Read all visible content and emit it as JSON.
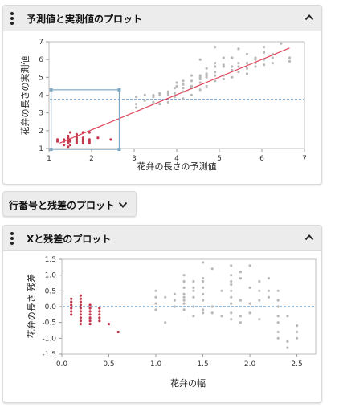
{
  "panel1": {
    "title": "予測値と実測値のプロット",
    "plot": {
      "x_label": "花弁の長さの予測値",
      "y_label": "花弁の長さの実測値",
      "x_ticks": [
        "1",
        "2",
        "3",
        "4",
        "5",
        "6",
        "7"
      ],
      "y_ticks": [
        "1",
        "2",
        "3",
        "4",
        "5",
        "6",
        "7"
      ]
    }
  },
  "panel2": {
    "title": "行番号と残差のプロット"
  },
  "panel3": {
    "title": "Xと残差のプロット",
    "plot": {
      "x_label": "花弁の幅",
      "y_label": "花弁の長さ 残差",
      "x_ticks": [
        "0.0",
        "0.5",
        "1.0",
        "1.5",
        "2.0",
        "2.5"
      ],
      "y_ticks": [
        "1.5",
        "1.0",
        "0.5",
        "0.0",
        "-0.5",
        "-1.0",
        "-1.5"
      ]
    }
  },
  "colors": {
    "selected": "#c2384e",
    "unselected": "#b9b9b9",
    "fit_line": "#e0445a",
    "mean_line": "#3a78b5",
    "brush": "#7fa9c2"
  },
  "chart_data": [
    {
      "type": "scatter",
      "title": "予測値と実測値のプロット",
      "xlabel": "花弁の長さの予測値",
      "ylabel": "花弁の長さの実測値",
      "xlim": [
        1,
        7
      ],
      "ylim": [
        1,
        7
      ],
      "fit_line": {
        "x": [
          1.25,
          6.65
        ],
        "y": [
          1.3,
          6.65
        ]
      },
      "mean_line_y": 3.76,
      "selection_box": {
        "x": [
          1.05,
          2.65
        ],
        "y": [
          0.95,
          4.3
        ]
      },
      "series": [
        {
          "selected": true,
          "x": [
            1.2,
            1.2,
            1.35,
            1.35,
            1.35,
            1.45,
            1.45,
            1.45,
            1.45,
            1.45,
            1.45,
            1.5,
            1.5,
            1.5,
            1.5,
            1.65,
            1.65,
            1.65,
            1.65,
            1.65,
            1.65,
            1.8,
            1.8,
            1.8,
            1.8,
            1.8,
            1.95,
            1.95,
            1.95,
            1.95,
            2.15,
            2.45
          ],
          "y": [
            1.4,
            1.5,
            1.2,
            1.4,
            1.5,
            1.1,
            1.3,
            1.4,
            1.5,
            1.6,
            1.7,
            1.2,
            1.4,
            1.5,
            1.9,
            1.3,
            1.4,
            1.5,
            1.6,
            1.7,
            1.8,
            1.3,
            1.4,
            1.5,
            1.6,
            1.9,
            1.3,
            1.4,
            1.5,
            1.9,
            1.6,
            1.5
          ]
        },
        {
          "selected": false,
          "x": [
            3.05,
            3.05,
            3.05,
            3.25,
            3.25,
            3.45,
            3.45,
            3.45,
            3.6,
            3.6,
            3.6,
            3.8,
            3.8,
            3.8,
            3.8,
            3.95,
            3.95,
            3.95,
            4.0,
            4.0,
            4.15,
            4.15,
            4.15,
            4.15,
            4.15,
            4.35,
            4.35,
            4.35,
            4.35,
            4.35,
            4.55,
            4.55,
            4.55,
            4.55,
            4.55,
            4.55,
            4.7,
            4.7,
            4.7,
            4.7,
            4.7,
            4.9,
            4.9,
            4.9,
            4.9,
            4.9,
            4.9,
            5.1,
            5.1,
            5.1,
            5.1,
            5.1,
            5.3,
            5.3,
            5.3,
            5.3,
            5.45,
            5.45,
            5.45,
            5.45,
            5.65,
            5.65,
            5.65,
            5.65,
            5.85,
            5.85,
            5.85,
            5.85,
            6.05,
            6.05,
            6.05,
            6.05,
            6.25,
            6.25,
            6.25,
            6.45,
            6.65,
            6.65
          ],
          "y": [
            3.3,
            3.5,
            3.9,
            3.7,
            4.0,
            3.6,
            3.9,
            4.0,
            3.5,
            4.0,
            4.1,
            3.6,
            4.0,
            4.1,
            4.2,
            3.9,
            4.1,
            4.4,
            4.5,
            4.7,
            3.8,
            4.2,
            4.4,
            4.6,
            4.8,
            4.0,
            4.4,
            4.5,
            4.8,
            5.1,
            4.3,
            4.7,
            4.9,
            5.0,
            5.1,
            6.0,
            4.5,
            5.0,
            5.1,
            5.2,
            5.5,
            4.8,
            5.1,
            5.3,
            5.6,
            5.8,
            6.7,
            4.9,
            5.1,
            5.6,
            5.7,
            6.1,
            5.0,
            5.4,
            5.6,
            6.1,
            5.3,
            5.6,
            5.8,
            6.6,
            5.2,
            5.5,
            5.8,
            6.3,
            5.6,
            5.8,
            6.0,
            6.1,
            5.7,
            6.0,
            6.4,
            6.7,
            5.8,
            6.1,
            6.3,
            6.9,
            5.9,
            6.1
          ]
        }
      ]
    },
    {
      "type": "scatter",
      "title": "Xと残差のプロット",
      "xlabel": "花弁の幅",
      "ylabel": "花弁の長さ 残差",
      "xlim": [
        0,
        2.7
      ],
      "ylim": [
        -1.5,
        1.5
      ],
      "mean_line_y": 0,
      "series": [
        {
          "selected": true,
          "x": [
            0.1,
            0.1,
            0.1,
            0.1,
            0.1,
            0.1,
            0.2,
            0.2,
            0.2,
            0.2,
            0.2,
            0.2,
            0.2,
            0.2,
            0.2,
            0.2,
            0.3,
            0.3,
            0.3,
            0.3,
            0.3,
            0.3,
            0.3,
            0.4,
            0.4,
            0.4,
            0.4,
            0.4,
            0.5,
            0.6
          ],
          "y": [
            0.25,
            0.15,
            0.05,
            -0.05,
            -0.15,
            -0.25,
            0.35,
            0.25,
            0.15,
            0.05,
            -0.05,
            -0.15,
            -0.25,
            -0.35,
            -0.45,
            -0.55,
            0.05,
            -0.05,
            -0.15,
            -0.25,
            -0.35,
            -0.45,
            -0.55,
            -0.05,
            -0.15,
            -0.25,
            -0.35,
            -0.45,
            -0.55,
            -0.8
          ]
        },
        {
          "selected": false,
          "x": [
            1.0,
            1.0,
            1.0,
            1.0,
            1.1,
            1.1,
            1.2,
            1.2,
            1.2,
            1.3,
            1.3,
            1.3,
            1.3,
            1.3,
            1.3,
            1.3,
            1.3,
            1.4,
            1.4,
            1.4,
            1.4,
            1.4,
            1.4,
            1.5,
            1.5,
            1.5,
            1.5,
            1.5,
            1.5,
            1.5,
            1.5,
            1.6,
            1.6,
            1.6,
            1.7,
            1.7,
            1.8,
            1.8,
            1.8,
            1.8,
            1.8,
            1.8,
            1.8,
            1.8,
            1.8,
            1.9,
            1.9,
            1.9,
            1.9,
            1.9,
            2.0,
            2.0,
            2.0,
            2.0,
            2.1,
            2.1,
            2.1,
            2.1,
            2.2,
            2.2,
            2.2,
            2.3,
            2.3,
            2.3,
            2.3,
            2.3,
            2.3,
            2.3,
            2.4,
            2.4,
            2.4,
            2.5,
            2.5,
            2.5
          ],
          "y": [
            0.5,
            0.3,
            0.1,
            -0.1,
            0.3,
            -0.5,
            0.4,
            0.2,
            0.0,
            1.0,
            0.8,
            0.6,
            0.4,
            0.3,
            0.2,
            0.1,
            -0.1,
            0.8,
            0.6,
            0.5,
            0.3,
            0.0,
            -0.3,
            1.4,
            0.9,
            0.8,
            0.6,
            0.4,
            0.2,
            -0.2,
            -0.1,
            1.2,
            0.0,
            -0.2,
            0.5,
            -0.3,
            1.3,
            1.0,
            0.8,
            0.7,
            0.5,
            0.3,
            0.1,
            -0.2,
            -0.4,
            1.1,
            0.9,
            0.2,
            -0.3,
            -0.5,
            1.3,
            0.6,
            0.1,
            -0.2,
            0.8,
            0.5,
            0.2,
            -0.4,
            0.9,
            0.5,
            0.3,
            0.5,
            0.2,
            0.0,
            -0.3,
            -0.5,
            -0.8,
            -1.0,
            -0.3,
            -1.1,
            -1.3,
            -0.6,
            -0.8,
            -1.0
          ]
        }
      ]
    }
  ]
}
